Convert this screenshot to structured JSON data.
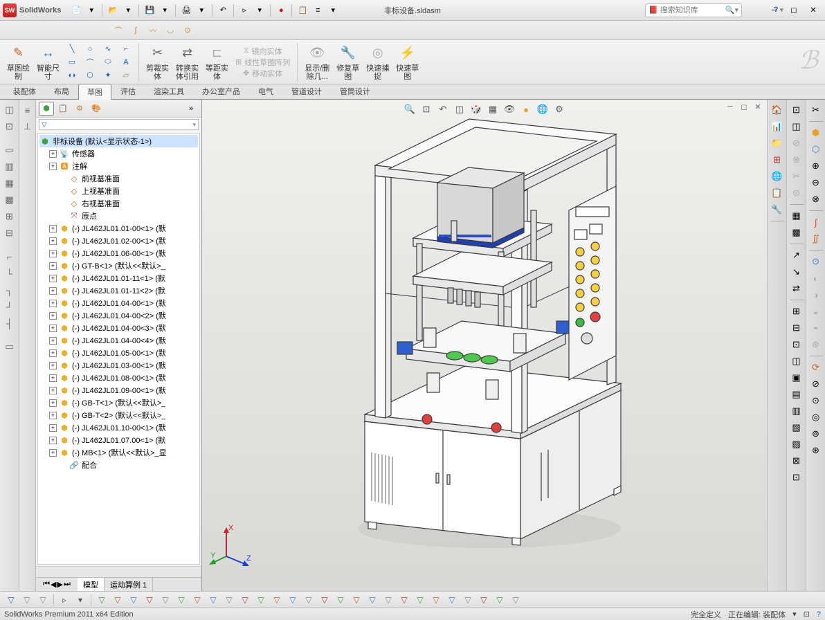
{
  "app": {
    "name": "SolidWorks",
    "doc_title": "非标设备.sldasm",
    "search_placeholder": "搜索知识库"
  },
  "ribbon": {
    "sketch_btn": "草图绘\n制",
    "smart_dim": "智能尺\n寸",
    "trim": "剪裁实\n体",
    "convert": "转换实\n体引用",
    "offset": "等距实\n体",
    "mirror": "镜向实体",
    "linear_pattern": "线性草图阵列",
    "move": "移动实体",
    "show_hide": "显示/删\n除几...",
    "repair": "修复草\n图",
    "quick_snap": "快速捕\n捉",
    "rapid_sketch": "快速草\n图"
  },
  "ribbon_tabs": [
    "装配体",
    "布局",
    "草图",
    "评估",
    "渲染工具",
    "办公室产品",
    "电气",
    "管道设计",
    "管筒设计"
  ],
  "ribbon_active_tab": 2,
  "tree": {
    "root": "非标设备  (默认<显示状态-1>)",
    "items": [
      {
        "icon": "sensor",
        "label": "传感器",
        "expand": "+",
        "indent": 1
      },
      {
        "icon": "annot",
        "label": "注解",
        "expand": "+",
        "indent": 1
      },
      {
        "icon": "plane",
        "label": "前视基准面",
        "indent": 2
      },
      {
        "icon": "plane",
        "label": "上视基准面",
        "indent": 2
      },
      {
        "icon": "plane",
        "label": "右视基准面",
        "indent": 2
      },
      {
        "icon": "origin",
        "label": "原点",
        "indent": 2
      },
      {
        "icon": "part",
        "label": "(-) JL462JL01.01-00<1> (默",
        "expand": "+",
        "indent": 1
      },
      {
        "icon": "part",
        "label": "(-) JL462JL01.02-00<1> (默",
        "expand": "+",
        "indent": 1
      },
      {
        "icon": "part",
        "label": "(-) JL462JL01.06-00<1> (默",
        "expand": "+",
        "indent": 1
      },
      {
        "icon": "part",
        "label": "(-) GT-B<1> (默认<<默认>_",
        "expand": "+",
        "indent": 1
      },
      {
        "icon": "part",
        "label": "(-) JL462JL01.01-11<1> (默",
        "expand": "+",
        "indent": 1
      },
      {
        "icon": "part",
        "label": "(-) JL462JL01.01-11<2> (默",
        "expand": "+",
        "indent": 1
      },
      {
        "icon": "part",
        "label": "(-) JL462JL01.04-00<1> (默",
        "expand": "+",
        "indent": 1
      },
      {
        "icon": "part",
        "label": "(-) JL462JL01.04-00<2> (默",
        "expand": "+",
        "indent": 1
      },
      {
        "icon": "part",
        "label": "(-) JL462JL01.04-00<3> (默",
        "expand": "+",
        "indent": 1
      },
      {
        "icon": "part",
        "label": "(-) JL462JL01.04-00<4> (默",
        "expand": "+",
        "indent": 1
      },
      {
        "icon": "part",
        "label": "(-) JL462JL01.05-00<1> (默",
        "expand": "+",
        "indent": 1
      },
      {
        "icon": "part",
        "label": "(-) JL462JL01.03-00<1> (默",
        "expand": "+",
        "indent": 1
      },
      {
        "icon": "part",
        "label": "(-) JL462JL01.08-00<1> (默",
        "expand": "+",
        "indent": 1
      },
      {
        "icon": "part",
        "label": "(-) JL462JL01.09-00<1> (默",
        "expand": "+",
        "indent": 1
      },
      {
        "icon": "part",
        "label": "(-) GB-T<1> (默认<<默认>_",
        "expand": "+",
        "indent": 1
      },
      {
        "icon": "part",
        "label": "(-) GB-T<2> (默认<<默认>_",
        "expand": "+",
        "indent": 1
      },
      {
        "icon": "part",
        "label": "(-) JL462JL01.10-00<1> (默",
        "expand": "+",
        "indent": 1
      },
      {
        "icon": "part",
        "label": "(-) JL462JL01.07.00<1> (默",
        "expand": "+",
        "indent": 1
      },
      {
        "icon": "part",
        "label": "(-) MB<1> (默认<<默认>_显",
        "expand": "+",
        "indent": 1
      },
      {
        "icon": "mates",
        "label": "配合",
        "indent": 2
      }
    ],
    "bottom_tabs": [
      "模型",
      "运动算例 1"
    ],
    "bottom_active": 0
  },
  "status": {
    "edition": "SolidWorks Premium 2011 x64 Edition",
    "fully_defined": "完全定义",
    "editing": "正在编辑:",
    "edit_target": "装配体"
  },
  "colors": {
    "model_edge": "#3a3a3a",
    "model_fill_light": "#ffffff",
    "model_fill_mid": "#f2f2f2",
    "model_fill_dark": "#e5e5e5",
    "cylinder_blue": "#2040b0",
    "cylinder_light_blue": "#9ab4e8",
    "button_yellow": "#f8d048",
    "button_red": "#e04040",
    "button_green": "#40b848",
    "part_green": "#50c850",
    "pneumatic_blue": "#3060d0",
    "shadow": "#c8c8c6"
  },
  "triad_labels": {
    "x": "X",
    "y": "Y",
    "z": "Z"
  }
}
